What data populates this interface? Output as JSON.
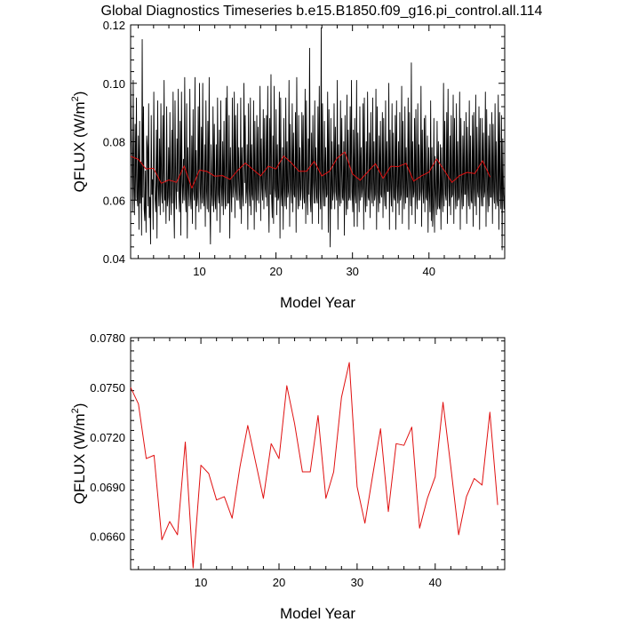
{
  "title": "Global Diagnostics Timeseries b.e15.B1850.f09_g16.pi_control.all.114",
  "chart_data": [
    {
      "type": "line",
      "xlabel": "Model Year",
      "ylabel_main": "QFLUX (W/m",
      "ylabel_sup": "2",
      "ylabel_tail": ")",
      "xlim": [
        1,
        49.9
      ],
      "ylim": [
        0.04,
        0.12
      ],
      "yticks": [
        0.04,
        0.06,
        0.08,
        0.1,
        0.12
      ],
      "ytick_labels": [
        "0.04",
        "0.06",
        "0.08",
        "0.10",
        "0.12"
      ],
      "xticks": [
        10,
        20,
        30,
        40
      ],
      "xtick_labels": [
        "10",
        "20",
        "30",
        "40"
      ],
      "series": [
        {
          "role": "monthly",
          "color": "#000000",
          "values": [
            0.105,
            0.084,
            0.071,
            0.056,
            0.101,
            0.064,
            0.055,
            0.086,
            0.06,
            0.095,
            0.061,
            0.058,
            0.082,
            0.05,
            0.087,
            0.059,
            0.073,
            0.048,
            0.115,
            0.061,
            0.092,
            0.057,
            0.053,
            0.07,
            0.049,
            0.082,
            0.078,
            0.058,
            0.093,
            0.054,
            0.061,
            0.045,
            0.089,
            0.062,
            0.067,
            0.05,
            0.097,
            0.066,
            0.06,
            0.056,
            0.084,
            0.047,
            0.094,
            0.065,
            0.058,
            0.081,
            0.055,
            0.093,
            0.063,
            0.059,
            0.089,
            0.056,
            0.101,
            0.06,
            0.066,
            0.052,
            0.092,
            0.058,
            0.061,
            0.078,
            0.053,
            0.09,
            0.062,
            0.055,
            0.084,
            0.059,
            0.097,
            0.06,
            0.047,
            0.094,
            0.064,
            0.057,
            0.081,
            0.063,
            0.098,
            0.061,
            0.056,
            0.087,
            0.048,
            0.097,
            0.066,
            0.059,
            0.074,
            0.06,
            0.102,
            0.062,
            0.056,
            0.093,
            0.047,
            0.078,
            0.064,
            0.058,
            0.098,
            0.061,
            0.057,
            0.082,
            0.052,
            0.091,
            0.063,
            0.06,
            0.102,
            0.05,
            0.077,
            0.058,
            0.061,
            0.092,
            0.056,
            0.1,
            0.064,
            0.057,
            0.085,
            0.059,
            0.1,
            0.061,
            0.058,
            0.079,
            0.051,
            0.094,
            0.063,
            0.057,
            0.087,
            0.056,
            0.102,
            0.06,
            0.045,
            0.079,
            0.062,
            0.058,
            0.092,
            0.056,
            0.086,
            0.06,
            0.057,
            0.079,
            0.053,
            0.095,
            0.062,
            0.059,
            0.084,
            0.049,
            0.094,
            0.065,
            0.058,
            0.08,
            0.055,
            0.087,
            0.063,
            0.057,
            0.095,
            0.058,
            0.099,
            0.059,
            0.059,
            0.089,
            0.047,
            0.078,
            0.064,
            0.056,
            0.095,
            0.061,
            0.065,
            0.097,
            0.054,
            0.089,
            0.063,
            0.06,
            0.093,
            0.06,
            0.078,
            0.062,
            0.057,
            0.095,
            0.052,
            0.078,
            0.062,
            0.058,
            0.1,
            0.066,
            0.089,
            0.059,
            0.063,
            0.079,
            0.05,
            0.093,
            0.064,
            0.058,
            0.095,
            0.055,
            0.079,
            0.062,
            0.06,
            0.094,
            0.05,
            0.087,
            0.064,
            0.056,
            0.089,
            0.06,
            0.085,
            0.059,
            0.068,
            0.099,
            0.053,
            0.081,
            0.064,
            0.06,
            0.091,
            0.057,
            0.088,
            0.064,
            0.061,
            0.089,
            0.058,
            0.099,
            0.062,
            0.049,
            0.088,
            0.062,
            0.103,
            0.061,
            0.054,
            0.082,
            0.052,
            0.099,
            0.064,
            0.061,
            0.091,
            0.055,
            0.079,
            0.06,
            0.061,
            0.097,
            0.047,
            0.095,
            0.062,
            0.058,
            0.078,
            0.05,
            0.088,
            0.064,
            0.058,
            0.095,
            0.057,
            0.08,
            0.061,
            0.063,
            0.101,
            0.051,
            0.086,
            0.064,
            0.059,
            0.093,
            0.056,
            0.083,
            0.062,
            0.061,
            0.09,
            0.049,
            0.102,
            0.065,
            0.057,
            0.089,
            0.058,
            0.078,
            0.06,
            0.064,
            0.09,
            0.057,
            0.089,
            0.061,
            0.059,
            0.098,
            0.052,
            0.094,
            0.063,
            0.055,
            0.081,
            0.062,
            0.112,
            0.06,
            0.056,
            0.083,
            0.052,
            0.089,
            0.066,
            0.059,
            0.094,
            0.059,
            0.078,
            0.061,
            0.059,
            0.092,
            0.052,
            0.099,
            0.064,
            0.057,
            0.119,
            0.05,
            0.093,
            0.064,
            0.058,
            0.087,
            0.058,
            0.078,
            0.061,
            0.062,
            0.097,
            0.049,
            0.091,
            0.064,
            0.044,
            0.088,
            0.057,
            0.08,
            0.06,
            0.063,
            0.093,
            0.057,
            0.085,
            0.063,
            0.06,
            0.101,
            0.05,
            0.079,
            0.062,
            0.058,
            0.094,
            0.059,
            0.088,
            0.061,
            0.06,
            0.08,
            0.048,
            0.089,
            0.064,
            0.055,
            0.096,
            0.057,
            0.084,
            0.06,
            0.061,
            0.092,
            0.06,
            0.101,
            0.063,
            0.056,
            0.084,
            0.051,
            0.088,
            0.062,
            0.059,
            0.101,
            0.051,
            0.083,
            0.065,
            0.056,
            0.092,
            0.06,
            0.078,
            0.061,
            0.064,
            0.093,
            0.05,
            0.095,
            0.062,
            0.056,
            0.08,
            0.058,
            0.097,
            0.061,
            0.06,
            0.083,
            0.054,
            0.09,
            0.064,
            0.059,
            0.095,
            0.058,
            0.08,
            0.06,
            0.062,
            0.098,
            0.05,
            0.092,
            0.063,
            0.056,
            0.082,
            0.059,
            0.087,
            0.062,
            0.061,
            0.09,
            0.054,
            0.088,
            0.063,
            0.058,
            0.094,
            0.057,
            0.08,
            0.063,
            0.063,
            0.1,
            0.05,
            0.084,
            0.064,
            0.058,
            0.093,
            0.056,
            0.083,
            0.061,
            0.06,
            0.089,
            0.05,
            0.094,
            0.065,
            0.059,
            0.08,
            0.055,
            0.09,
            0.06,
            0.062,
            0.099,
            0.052,
            0.087,
            0.064,
            0.057,
            0.092,
            0.059,
            0.078,
            0.061,
            0.061,
            0.095,
            0.05,
            0.09,
            0.064,
            0.058,
            0.107,
            0.055,
            0.08,
            0.061,
            0.063,
            0.088,
            0.052,
            0.091,
            0.062,
            0.057,
            0.093,
            0.06,
            0.079,
            0.06,
            0.063,
            0.099,
            0.051,
            0.084,
            0.064,
            0.059,
            0.088,
            0.056,
            0.089,
            0.061,
            0.06,
            0.082,
            0.049,
            0.078,
            0.063,
            0.056,
            0.094,
            0.053,
            0.078,
            0.051,
            0.058,
            0.088,
            0.049,
            0.075,
            0.062,
            0.055,
            0.087,
            0.057,
            0.08,
            0.058,
            0.057,
            0.079,
            0.05,
            0.078,
            0.062,
            0.056,
            0.1,
            0.058,
            0.087,
            0.062,
            0.06,
            0.09,
            0.052,
            0.098,
            0.065,
            0.058,
            0.082,
            0.055,
            0.089,
            0.061,
            0.062,
            0.096,
            0.052,
            0.088,
            0.064,
            0.057,
            0.093,
            0.058,
            0.08,
            0.06,
            0.061,
            0.097,
            0.05,
            0.088,
            0.063,
            0.057,
            0.082,
            0.058,
            0.087,
            0.062,
            0.062,
            0.09,
            0.052,
            0.085,
            0.064,
            0.058,
            0.094,
            0.057,
            0.082,
            0.06,
            0.059,
            0.089,
            0.051,
            0.09,
            0.064,
            0.058,
            0.096,
            0.055,
            0.085,
            0.063,
            0.061,
            0.092,
            0.05,
            0.088,
            0.064,
            0.058,
            0.088,
            0.058,
            0.083,
            0.061,
            0.063,
            0.097,
            0.051,
            0.091,
            0.064,
            0.056,
            0.082,
            0.058,
            0.086,
            0.061,
            0.061,
            0.09,
            0.052,
            0.086,
            0.063,
            0.059,
            0.093,
            0.057,
            0.08,
            0.06,
            0.058,
            0.096,
            0.05,
            0.09,
            0.064,
            0.057,
            0.089,
            0.043,
            0.081,
            0.062,
            0.057,
            0.068
          ]
        },
        {
          "role": "annual",
          "color": "#e01010",
          "values": [
            0.075,
            0.074,
            0.0707,
            0.0709,
            0.0658,
            0.0669,
            0.0661,
            0.0717,
            0.0641,
            0.0703,
            0.0698,
            0.0682,
            0.0684,
            0.0671,
            0.0702,
            0.0727,
            0.0705,
            0.0683,
            0.0716,
            0.0707,
            0.0751,
            0.0728,
            0.0699,
            0.0699,
            0.0733,
            0.0683,
            0.0699,
            0.0744,
            0.0765,
            0.069,
            0.0668,
            0.0697,
            0.0725,
            0.0675,
            0.0716,
            0.0715,
            0.0726,
            0.0665,
            0.0683,
            0.0696,
            0.0741,
            0.0702,
            0.0661,
            0.0684,
            0.0695,
            0.0691,
            0.0735,
            0.0679
          ]
        }
      ]
    },
    {
      "type": "line",
      "xlabel": "Model Year",
      "ylabel_main": "QFLUX (W/m",
      "ylabel_sup": "2",
      "ylabel_tail": ")",
      "xlim": [
        1,
        48.9
      ],
      "ylim": [
        0.064,
        0.078
      ],
      "yticks": [
        0.066,
        0.069,
        0.072,
        0.075,
        0.078
      ],
      "ytick_labels": [
        "0.0660",
        "0.0690",
        "0.0720",
        "0.0750",
        "0.0780"
      ],
      "xticks": [
        10,
        20,
        30,
        40
      ],
      "xtick_labels": [
        "10",
        "20",
        "30",
        "40"
      ],
      "series": [
        {
          "role": "annual",
          "color": "#e01010",
          "values": [
            0.075,
            0.074,
            0.0707,
            0.0709,
            0.0658,
            0.0669,
            0.0661,
            0.0717,
            0.0641,
            0.0703,
            0.0698,
            0.0682,
            0.0684,
            0.0671,
            0.0702,
            0.0727,
            0.0705,
            0.0683,
            0.0716,
            0.0707,
            0.0751,
            0.0728,
            0.0699,
            0.0699,
            0.0733,
            0.0683,
            0.0699,
            0.0744,
            0.0765,
            0.069,
            0.0668,
            0.0697,
            0.0725,
            0.0675,
            0.0716,
            0.0715,
            0.0726,
            0.0665,
            0.0683,
            0.0696,
            0.0741,
            0.0702,
            0.0661,
            0.0684,
            0.0695,
            0.0691,
            0.0735,
            0.0679
          ]
        }
      ]
    }
  ]
}
